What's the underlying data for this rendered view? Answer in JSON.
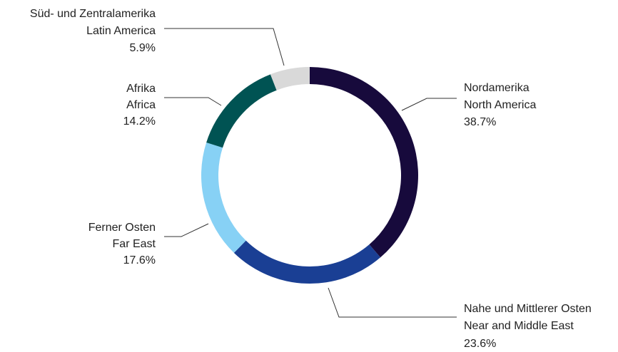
{
  "chart_data": {
    "type": "donut",
    "categories": [
      "North America",
      "Near and Middle East",
      "Far East",
      "Africa",
      "Latin America"
    ],
    "categories_de": [
      "Nordamerika",
      "Nahe und Mittlerer Osten",
      "Ferner Osten",
      "Afrika",
      "Süd- und Zentralamerika"
    ],
    "values": [
      38.7,
      23.6,
      17.6,
      14.2,
      5.9
    ],
    "value_labels": [
      "38.7%",
      "23.6%",
      "17.6%",
      "14.2%",
      "5.9%"
    ],
    "colors": [
      "#170a3c",
      "#1a3f94",
      "#87d1f5",
      "#005353",
      "#d9d9d9"
    ]
  }
}
